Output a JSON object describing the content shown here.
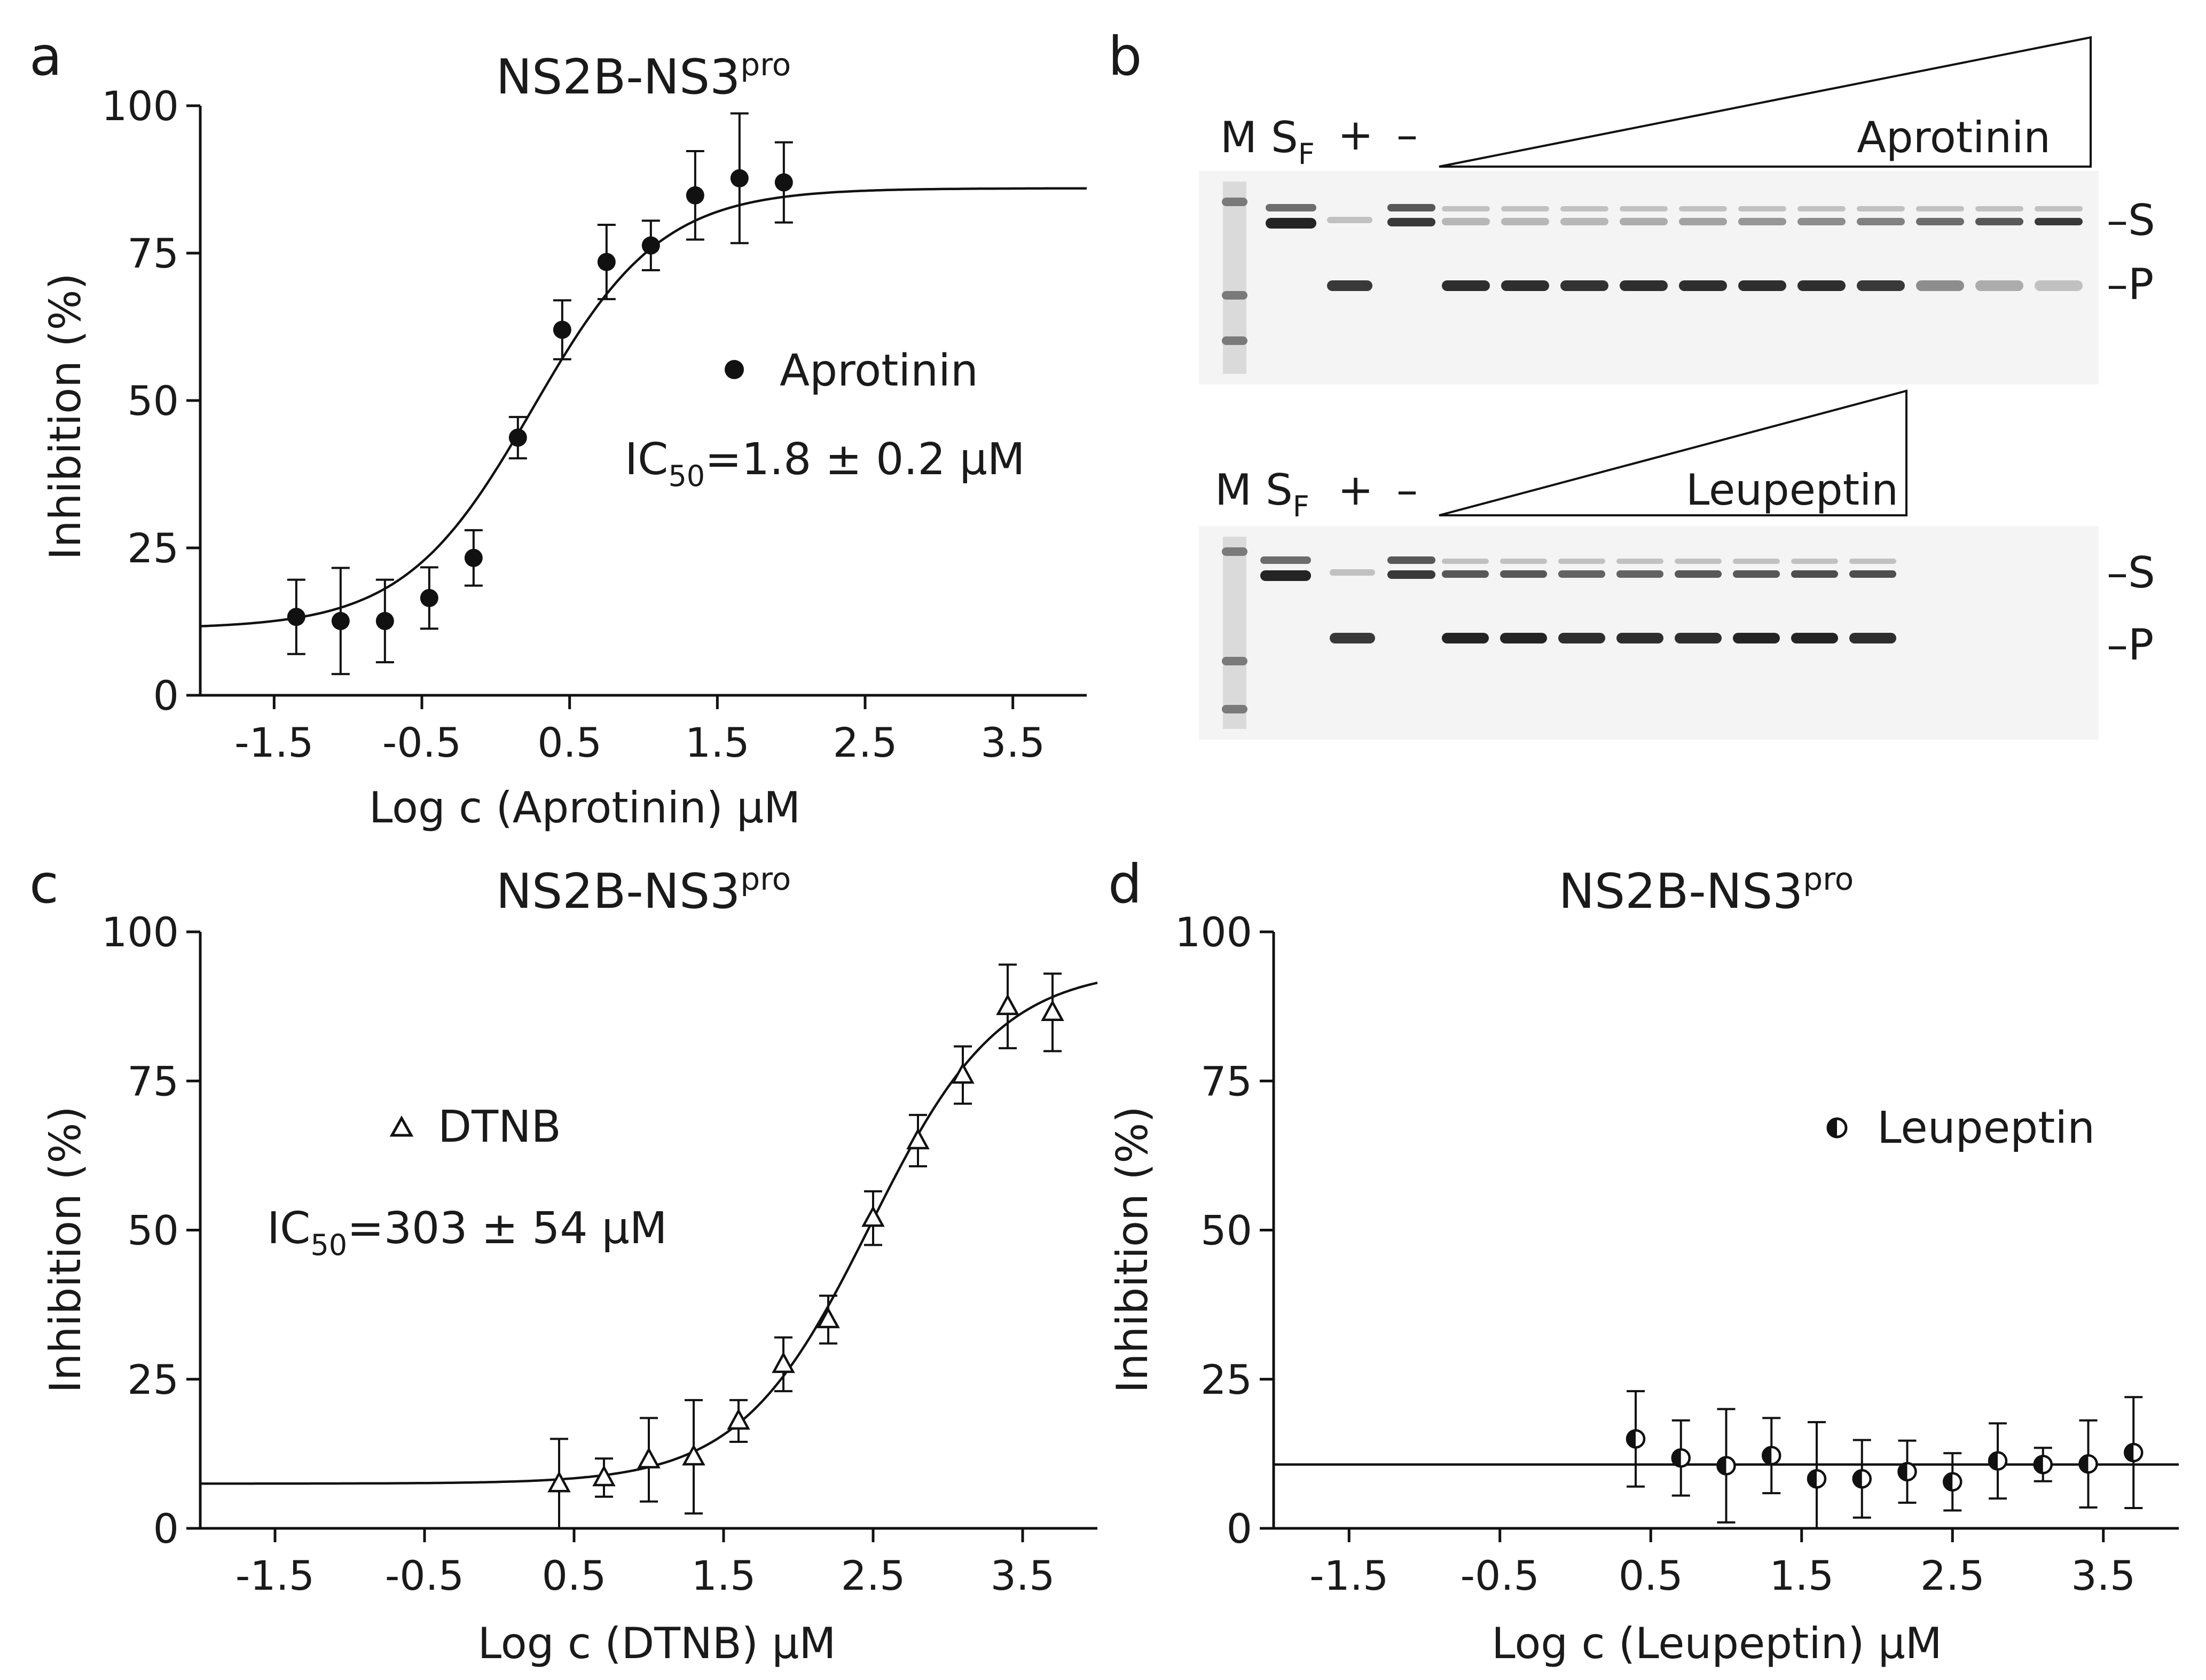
{
  "chart_data": [
    {
      "panel": "a",
      "type": "scatter",
      "title": "NS2B-NS3",
      "title_sup": "pro",
      "xlabel": "Log c (Aprotinin) μM",
      "ylabel": "Inhibition (%)",
      "xlim": [
        -2.0,
        4.0
      ],
      "ylim": [
        0,
        100
      ],
      "xticks": [
        "-1.5",
        "-0.5",
        "0.5",
        "1.5",
        "2.5",
        "3.5"
      ],
      "yticks": [
        "0",
        "25",
        "50",
        "75",
        "100"
      ],
      "marker": "filled-circle",
      "legend_label": "Aprotinin",
      "ic50_label": "IC",
      "ic50_sub": "50",
      "ic50_value": "=1.8 ± 0.2 μM",
      "fit": {
        "bottom": 11.3,
        "top": 86.0,
        "logIC50": 0.25,
        "hill": 1.0
      },
      "series": [
        {
          "name": "Aprotinin",
          "x": [
            -1.35,
            -1.05,
            -0.75,
            -0.45,
            -0.15,
            0.15,
            0.45,
            0.75,
            1.05,
            1.35,
            1.65,
            1.95
          ],
          "y": [
            13.3,
            12.6,
            12.6,
            16.5,
            23.3,
            43.7,
            62.0,
            73.5,
            76.3,
            84.8,
            87.7,
            87.0
          ],
          "err": [
            6.3,
            9.0,
            7.0,
            5.2,
            4.7,
            3.5,
            5.0,
            6.3,
            4.2,
            7.5,
            11.0,
            6.8
          ]
        }
      ]
    },
    {
      "panel": "b",
      "type": "gel",
      "gels": [
        {
          "inhibitor": "Aprotinin",
          "lane_labels": {
            "marker": "M",
            "substrate": "S",
            "substrate_sub": "F",
            "plus": "+",
            "minus": "–"
          },
          "band_labels": {
            "substrate": "S",
            "product": "P"
          },
          "n_lanes": 11,
          "substrate_intensity": [
            0.25,
            0.25,
            0.25,
            0.3,
            0.35,
            0.4,
            0.45,
            0.5,
            0.6,
            0.7,
            0.85
          ],
          "product_intensity": [
            0.9,
            0.9,
            0.88,
            0.9,
            0.9,
            0.9,
            0.9,
            0.85,
            0.45,
            0.3,
            0.2
          ]
        },
        {
          "inhibitor": "Leupeptin",
          "lane_labels": {
            "marker": "M",
            "substrate": "S",
            "substrate_sub": "F",
            "plus": "+",
            "minus": "–"
          },
          "band_labels": {
            "substrate": "S",
            "product": "P"
          },
          "n_lanes": 8,
          "substrate_intensity": [
            0.7,
            0.7,
            0.65,
            0.65,
            0.7,
            0.7,
            0.75,
            0.75
          ],
          "product_intensity": [
            0.95,
            0.95,
            0.9,
            0.9,
            0.9,
            0.95,
            0.95,
            0.9
          ]
        }
      ]
    },
    {
      "panel": "c",
      "type": "scatter",
      "title": "NS2B-NS3",
      "title_sup": "pro",
      "xlabel": "Log c (DTNB) μM",
      "ylabel": "Inhibition (%)",
      "xlim": [
        -2.0,
        4.0
      ],
      "ylim": [
        0,
        100
      ],
      "xticks": [
        "-1.5",
        "-0.5",
        "0.5",
        "1.5",
        "2.5",
        "3.5"
      ],
      "yticks": [
        "0",
        "25",
        "50",
        "75",
        "100"
      ],
      "marker": "open-triangle",
      "legend_label": "DTNB",
      "ic50_label": "IC",
      "ic50_sub": "50",
      "ic50_value": "=303 ± 54 μM",
      "fit": {
        "bottom": 7.5,
        "top": 94.0,
        "logIC50": 2.48,
        "hill": 1.0
      },
      "series": [
        {
          "name": "DTNB",
          "x": [
            0.4,
            0.7,
            1.0,
            1.3,
            1.6,
            1.9,
            2.2,
            2.5,
            2.8,
            3.1,
            3.4,
            3.7
          ],
          "y": [
            7.5,
            8.5,
            11.5,
            12.0,
            18.0,
            27.5,
            35.0,
            52.0,
            65.0,
            76.0,
            87.5,
            86.5
          ],
          "err": [
            7.5,
            3.2,
            7.0,
            9.5,
            3.5,
            4.5,
            4.0,
            4.5,
            4.3,
            4.8,
            7.0,
            6.5
          ]
        }
      ]
    },
    {
      "panel": "d",
      "type": "scatter",
      "title": "NS2B-NS3",
      "title_sup": "pro",
      "xlabel": "Log c (Leupeptin) μM",
      "ylabel": "Inhibition (%)",
      "xlim": [
        -2.0,
        4.0
      ],
      "ylim": [
        0,
        100
      ],
      "xticks": [
        "-1.5",
        "-0.5",
        "0.5",
        "1.5",
        "2.5",
        "3.5"
      ],
      "yticks": [
        "0",
        "25",
        "50",
        "75",
        "100"
      ],
      "marker": "half-filled-circle",
      "legend_label": "Leupeptin",
      "fit": {
        "constant": 10.7
      },
      "series": [
        {
          "name": "Leupeptin",
          "x": [
            0.4,
            0.7,
            1.0,
            1.3,
            1.6,
            1.9,
            2.2,
            2.5,
            2.8,
            3.1,
            3.4,
            3.7
          ],
          "y": [
            15.0,
            11.8,
            10.5,
            12.2,
            8.3,
            8.3,
            9.5,
            7.8,
            11.3,
            10.7,
            10.8,
            12.7
          ],
          "err": [
            8.0,
            6.3,
            9.5,
            6.3,
            9.5,
            6.5,
            5.2,
            4.8,
            6.3,
            2.8,
            7.3,
            9.3
          ]
        }
      ]
    }
  ],
  "panel_letters": [
    "a",
    "b",
    "c",
    "d"
  ]
}
